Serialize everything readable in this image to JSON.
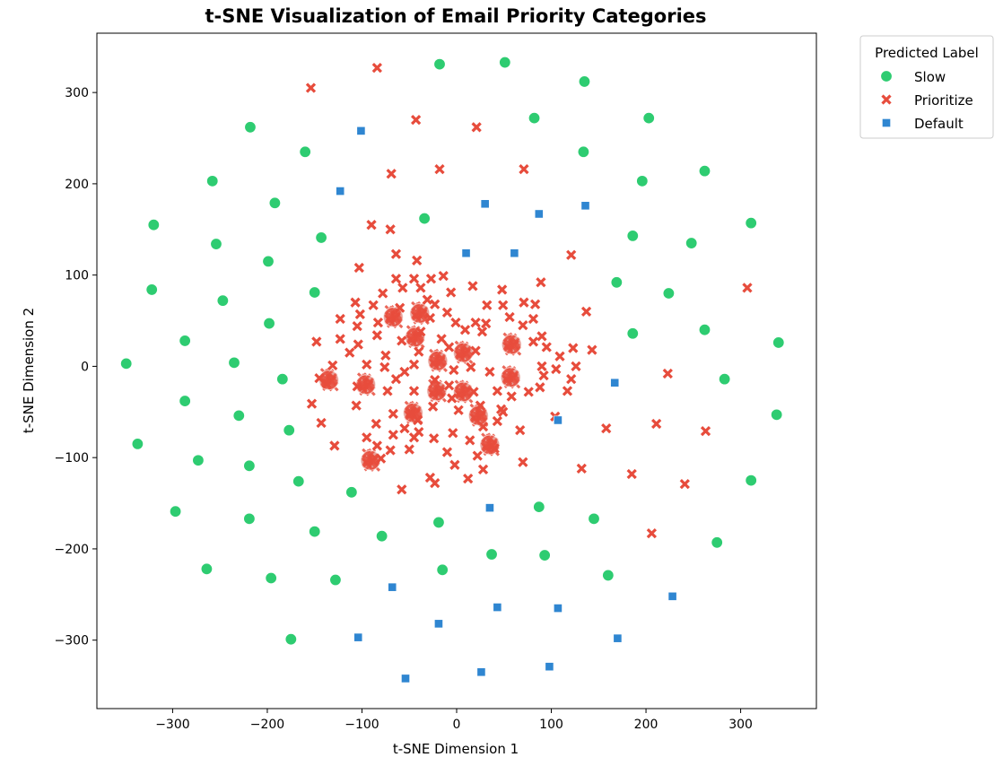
{
  "chart_data": {
    "type": "scatter",
    "title": "t-SNE Visualization of Email Priority Categories",
    "xlabel": "t-SNE Dimension 1",
    "ylabel": "t-SNE Dimension 2",
    "xlim": [
      -380,
      380
    ],
    "ylim": [
      -375,
      365
    ],
    "xticks": [
      -300,
      -200,
      -100,
      0,
      100,
      200,
      300
    ],
    "yticks": [
      -300,
      -200,
      -100,
      0,
      100,
      200,
      300
    ],
    "xtick_labels": [
      "−300",
      "−200",
      "−100",
      "0",
      "100",
      "200",
      "300"
    ],
    "ytick_labels": [
      "−300",
      "−200",
      "−100",
      "0",
      "100",
      "200",
      "300"
    ],
    "grid": false,
    "legend": {
      "title": "Predicted Label",
      "placement": "outside-top-right"
    },
    "series": [
      {
        "name": "Slow",
        "marker": "circle",
        "color": "#2ecc71",
        "points": [
          [
            -18,
            331
          ],
          [
            51,
            333
          ],
          [
            135,
            312
          ],
          [
            -218,
            262
          ],
          [
            82,
            272
          ],
          [
            203,
            272
          ],
          [
            -160,
            235
          ],
          [
            134,
            235
          ],
          [
            -258,
            203
          ],
          [
            196,
            203
          ],
          [
            262,
            214
          ],
          [
            -192,
            179
          ],
          [
            -320,
            155
          ],
          [
            -34,
            162
          ],
          [
            311,
            157
          ],
          [
            -143,
            141
          ],
          [
            -254,
            134
          ],
          [
            186,
            143
          ],
          [
            248,
            135
          ],
          [
            -199,
            115
          ],
          [
            -322,
            84
          ],
          [
            -150,
            81
          ],
          [
            169,
            92
          ],
          [
            224,
            80
          ],
          [
            -247,
            72
          ],
          [
            -198,
            47
          ],
          [
            262,
            40
          ],
          [
            186,
            36
          ],
          [
            -287,
            28
          ],
          [
            -349,
            3
          ],
          [
            -235,
            4
          ],
          [
            340,
            26
          ],
          [
            -184,
            -14
          ],
          [
            283,
            -14
          ],
          [
            -287,
            -38
          ],
          [
            -230,
            -54
          ],
          [
            338,
            -53
          ],
          [
            -337,
            -85
          ],
          [
            -177,
            -70
          ],
          [
            -273,
            -103
          ],
          [
            -219,
            -109
          ],
          [
            -167,
            -126
          ],
          [
            -111,
            -138
          ],
          [
            311,
            -125
          ],
          [
            -297,
            -159
          ],
          [
            -219,
            -167
          ],
          [
            -19,
            -171
          ],
          [
            87,
            -154
          ],
          [
            145,
            -167
          ],
          [
            -150,
            -181
          ],
          [
            -79,
            -186
          ],
          [
            275,
            -193
          ],
          [
            -264,
            -222
          ],
          [
            -196,
            -232
          ],
          [
            -128,
            -234
          ],
          [
            -15,
            -223
          ],
          [
            37,
            -206
          ],
          [
            93,
            -207
          ],
          [
            160,
            -229
          ],
          [
            -175,
            -299
          ]
        ]
      },
      {
        "name": "Prioritize",
        "marker": "x",
        "color": "#e74c3c",
        "points": [
          [
            -84,
            327
          ],
          [
            -154,
            305
          ],
          [
            -43,
            270
          ],
          [
            21,
            262
          ],
          [
            -18,
            216
          ],
          [
            -69,
            211
          ],
          [
            71,
            216
          ],
          [
            -90,
            155
          ],
          [
            -70,
            150
          ],
          [
            -64,
            123
          ],
          [
            -42,
            116
          ],
          [
            121,
            122
          ],
          [
            -103,
            108
          ],
          [
            -64,
            96
          ],
          [
            -45,
            96
          ],
          [
            -27,
            96
          ],
          [
            -14,
            99
          ],
          [
            -78,
            80
          ],
          [
            -57,
            86
          ],
          [
            -38,
            86
          ],
          [
            -60,
            64
          ],
          [
            -31,
            73
          ],
          [
            -6,
            81
          ],
          [
            48,
            84
          ],
          [
            17,
            88
          ],
          [
            89,
            92
          ],
          [
            -107,
            70
          ],
          [
            -88,
            67
          ],
          [
            -23,
            68
          ],
          [
            32,
            67
          ],
          [
            71,
            70
          ],
          [
            -123,
            52
          ],
          [
            -102,
            57
          ],
          [
            -105,
            44
          ],
          [
            -83,
            48
          ],
          [
            -84,
            34
          ],
          [
            -104,
            24
          ],
          [
            -148,
            27
          ],
          [
            -113,
            15
          ],
          [
            -123,
            30
          ],
          [
            31,
            47
          ],
          [
            49,
            67
          ],
          [
            56,
            54
          ],
          [
            83,
            68
          ],
          [
            81,
            52
          ],
          [
            70,
            45
          ],
          [
            137,
            60
          ],
          [
            -28,
            53
          ],
          [
            -10,
            59
          ],
          [
            -1,
            48
          ],
          [
            9,
            40
          ],
          [
            20,
            48
          ],
          [
            -38,
            38
          ],
          [
            -16,
            30
          ],
          [
            27,
            38
          ],
          [
            -58,
            28
          ],
          [
            -40,
            16
          ],
          [
            -45,
            2
          ],
          [
            -8,
            21
          ],
          [
            20,
            17
          ],
          [
            -75,
            12
          ],
          [
            -95,
            2
          ],
          [
            -131,
            1
          ],
          [
            -145,
            -13
          ],
          [
            -153,
            -41
          ],
          [
            -137,
            -19
          ],
          [
            -105,
            -22
          ],
          [
            -106,
            -43
          ],
          [
            -76,
            -1
          ],
          [
            -55,
            -6
          ],
          [
            -64,
            -14
          ],
          [
            -73,
            -27
          ],
          [
            -45,
            -27
          ],
          [
            -23,
            -15
          ],
          [
            -3,
            -4
          ],
          [
            15,
            -1
          ],
          [
            35,
            -6
          ],
          [
            -8,
            -21
          ],
          [
            -18,
            -28
          ],
          [
            -5,
            -35
          ],
          [
            18,
            -28
          ],
          [
            -25,
            -44
          ],
          [
            2,
            -48
          ],
          [
            25,
            -43
          ],
          [
            43,
            -27
          ],
          [
            58,
            -33
          ],
          [
            76,
            -28
          ],
          [
            49,
            -50
          ],
          [
            -85,
            -63
          ],
          [
            -67,
            -52
          ],
          [
            -48,
            -51
          ],
          [
            -41,
            -59
          ],
          [
            -55,
            -68
          ],
          [
            -67,
            -75
          ],
          [
            -70,
            -92
          ],
          [
            -84,
            -87
          ],
          [
            -95,
            -78
          ],
          [
            -80,
            -101
          ],
          [
            -50,
            -91
          ],
          [
            -45,
            -78
          ],
          [
            -40,
            -72
          ],
          [
            -24,
            -79
          ],
          [
            -4,
            -73
          ],
          [
            28,
            -66
          ],
          [
            43,
            -60
          ],
          [
            47,
            -47
          ],
          [
            14,
            -81
          ],
          [
            -10,
            -94
          ],
          [
            22,
            -98
          ],
          [
            40,
            -90
          ],
          [
            -28,
            -122
          ],
          [
            -23,
            -128
          ],
          [
            -2,
            -108
          ],
          [
            12,
            -123
          ],
          [
            28,
            -113
          ],
          [
            -58,
            -135
          ],
          [
            -129,
            -87
          ],
          [
            -143,
            -62
          ],
          [
            67,
            -70
          ],
          [
            132,
            -112
          ],
          [
            104,
            -55
          ],
          [
            158,
            -68
          ],
          [
            70,
            -105
          ],
          [
            88,
            -23
          ],
          [
            117,
            -27
          ],
          [
            92,
            -10
          ],
          [
            105,
            -3
          ],
          [
            109,
            11
          ],
          [
            123,
            20
          ],
          [
            95,
            21
          ],
          [
            81,
            27
          ],
          [
            90,
            33
          ],
          [
            143,
            18
          ],
          [
            126,
            0
          ],
          [
            121,
            -14
          ],
          [
            90,
            0
          ],
          [
            223,
            -8
          ],
          [
            307,
            86
          ],
          [
            185,
            -118
          ],
          [
            211,
            -63
          ],
          [
            263,
            -71
          ],
          [
            241,
            -129
          ],
          [
            206,
            -183
          ]
        ]
      },
      {
        "name": "Default",
        "marker": "square",
        "color": "#2f86d1",
        "points": [
          [
            -101,
            258
          ],
          [
            -123,
            192
          ],
          [
            30,
            178
          ],
          [
            87,
            167
          ],
          [
            136,
            176
          ],
          [
            10,
            124
          ],
          [
            61,
            124
          ],
          [
            167,
            -18
          ],
          [
            107,
            -59
          ],
          [
            35,
            -155
          ],
          [
            -68,
            -242
          ],
          [
            43,
            -264
          ],
          [
            107,
            -265
          ],
          [
            -19,
            -282
          ],
          [
            228,
            -252
          ],
          [
            -104,
            -297
          ],
          [
            170,
            -298
          ],
          [
            26,
            -335
          ],
          [
            98,
            -329
          ],
          [
            -54,
            -342
          ]
        ]
      }
    ],
    "dense_clusters": [
      [
        -67,
        54
      ],
      [
        -39,
        58
      ],
      [
        -44,
        32
      ],
      [
        -20,
        6
      ],
      [
        7,
        15
      ],
      [
        58,
        24
      ],
      [
        57,
        -12
      ],
      [
        -21,
        -27
      ],
      [
        7,
        -28
      ],
      [
        -46,
        -51
      ],
      [
        23,
        -54
      ],
      [
        35,
        -86
      ],
      [
        -91,
        -103
      ],
      [
        -96,
        -20
      ],
      [
        -135,
        -15
      ]
    ]
  }
}
